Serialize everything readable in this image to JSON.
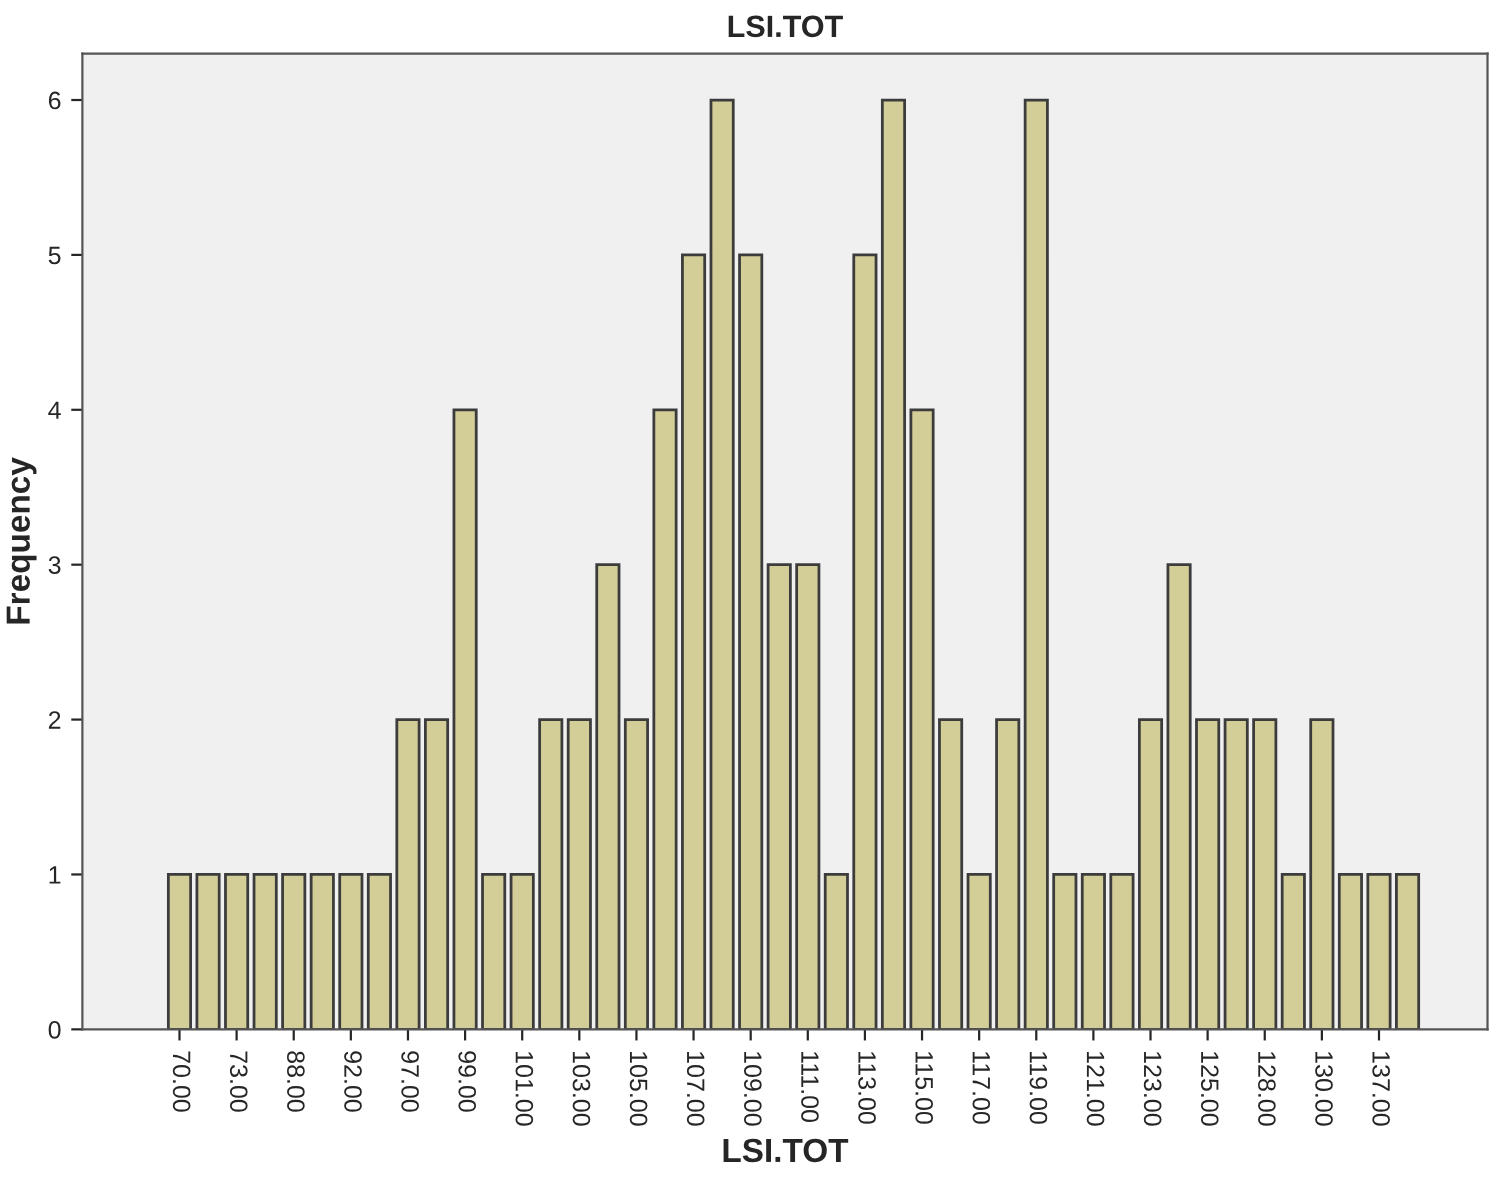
{
  "chart_data": {
    "type": "bar",
    "title": "LSI.TOT",
    "xlabel": "LSI.TOT",
    "ylabel": "Frequency",
    "categories": [
      "70.00",
      null,
      "73.00",
      null,
      "88.00",
      null,
      "92.00",
      null,
      "97.00",
      null,
      "99.00",
      null,
      "101.00",
      null,
      "103.00",
      null,
      "105.00",
      null,
      "107.00",
      null,
      "109.00",
      null,
      "111.00",
      null,
      "113.00",
      null,
      "115.00",
      null,
      "117.00",
      null,
      "119.00",
      null,
      "121.00",
      null,
      "123.00",
      null,
      "125.00",
      null,
      "128.00",
      null,
      "130.00",
      null,
      "137.00",
      null
    ],
    "values": [
      1,
      1,
      1,
      1,
      1,
      1,
      1,
      1,
      2,
      2,
      4,
      1,
      1,
      2,
      2,
      3,
      2,
      4,
      5,
      6,
      5,
      3,
      3,
      1,
      5,
      6,
      4,
      2,
      1,
      2,
      6,
      1,
      1,
      1,
      2,
      3,
      2,
      2,
      2,
      1,
      2,
      1,
      1,
      1
    ],
    "color": "#d3ce98",
    "ylim": [
      0,
      6.3
    ],
    "yticks": [
      0,
      1,
      2,
      3,
      4,
      5,
      6
    ],
    "grid": false,
    "legend": false
  }
}
